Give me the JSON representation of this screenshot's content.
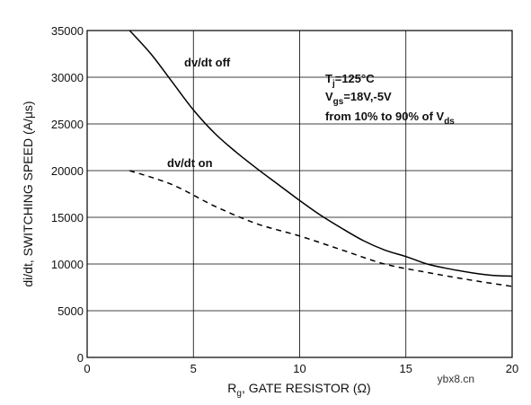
{
  "chart_data": {
    "type": "line",
    "title": "",
    "xlim": [
      0,
      20
    ],
    "ylim": [
      0,
      35000
    ],
    "x_ticks": [
      0,
      5,
      10,
      15,
      20
    ],
    "y_ticks": [
      0,
      5000,
      10000,
      15000,
      20000,
      25000,
      30000,
      35000
    ],
    "grid": true,
    "xlabel": {
      "main": "R",
      "sub": "g",
      "rest": ", GATE RESISTOR (Ω)"
    },
    "ylabel": "di/dt, SWITCHING SPEED (A/μs)",
    "series": [
      {
        "name": "dv/dt off",
        "style": "solid",
        "x": [
          2,
          3,
          4,
          5,
          6,
          7,
          8,
          9,
          10,
          11,
          12,
          13,
          14,
          15,
          16,
          17,
          18,
          19,
          20
        ],
        "y": [
          35000,
          32500,
          29500,
          26500,
          24000,
          22000,
          20200,
          18500,
          16800,
          15200,
          13800,
          12500,
          11500,
          10800,
          10000,
          9500,
          9100,
          8800,
          8700
        ]
      },
      {
        "name": "dv/dt on",
        "style": "dashed",
        "x": [
          2,
          4,
          6,
          8,
          10,
          12,
          14,
          16,
          18,
          20
        ],
        "y": [
          20000,
          18500,
          16200,
          14300,
          13000,
          11500,
          10000,
          9100,
          8300,
          7600
        ]
      }
    ],
    "annotations": {
      "tj": {
        "main": "T",
        "sub": "j",
        "rest": "=125°C"
      },
      "vgs": {
        "main": "V",
        "sub": "gs",
        "rest": "=18V,-5V"
      },
      "range": {
        "main": "from 10% to 90% of V",
        "sub": "ds"
      }
    }
  },
  "watermark": "ybx8.cn"
}
